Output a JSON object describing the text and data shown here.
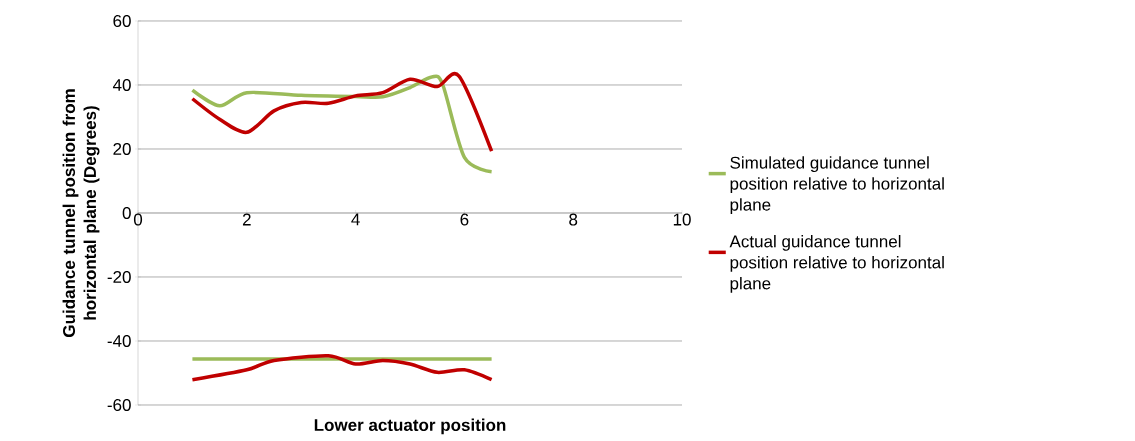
{
  "chart_data": {
    "type": "line",
    "xlabel": "Lower actuator position",
    "ylabel": "Guidance tunnel position from horizontal plane (Degrees)",
    "xlim": [
      0,
      10
    ],
    "ylim": [
      -60,
      60
    ],
    "xticks": [
      0,
      2,
      4,
      6,
      8,
      10
    ],
    "yticks": [
      -60,
      -40,
      -20,
      0,
      20,
      40,
      60
    ],
    "grid": "y",
    "legend": "right",
    "marker": "none",
    "line_style": "solid",
    "series": [
      {
        "name": "Simulated guidance tunnel position relative to horizontal plane",
        "color": "#9bbb59",
        "x": [
          1,
          1.5,
          2,
          3,
          4,
          4.5,
          5,
          5.4,
          5.6,
          6,
          6.5,
          null,
          1,
          2,
          3,
          4,
          5,
          6,
          6.5
        ],
        "values": [
          38.4,
          33.5,
          37.6,
          36.8,
          36.4,
          36.3,
          39.2,
          42.5,
          40.2,
          17.4,
          12.9,
          null,
          -45.6,
          -45.6,
          -45.6,
          -45.6,
          -45.6,
          -45.6,
          -45.6
        ]
      },
      {
        "name": "Actual guidance tunnel position relative to horizontal plane",
        "color": "#c00000",
        "x": [
          1,
          1.5,
          2,
          2.5,
          3,
          3.5,
          4,
          4.5,
          5,
          5.5,
          5.9,
          6.5,
          null,
          1,
          2,
          2.5,
          3.5,
          4,
          4.5,
          5,
          5.5,
          6,
          6.5
        ],
        "values": [
          35.7,
          29.3,
          25.2,
          31.9,
          34.5,
          34.3,
          36.6,
          37.6,
          41.8,
          39.5,
          42.8,
          19.3,
          null,
          -52.1,
          -49,
          -46.1,
          -44.6,
          -47.2,
          -46.1,
          -47.2,
          -49.8,
          -49,
          -52.1
        ]
      }
    ]
  }
}
